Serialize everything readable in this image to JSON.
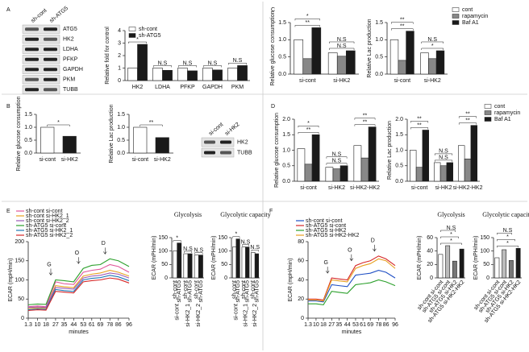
{
  "panels": [
    "A",
    "B",
    "C",
    "D",
    "E",
    "F"
  ],
  "blots": [
    {
      "lanes": [
        "sh-cont",
        "sh-ATG5"
      ],
      "rows": [
        "ATG5",
        "HK2",
        "LDHA",
        "PFKP",
        "GAPDH",
        "PKM",
        "TUBB"
      ]
    },
    {
      "lanes": [
        "si-cont",
        "si-HK2"
      ],
      "rows": [
        "HK2",
        "TUBB"
      ]
    }
  ],
  "chart_data": [
    {
      "type": "bar",
      "ylabel": "Relative fold for control",
      "categories": [
        "HK2",
        "LDHA",
        "PFKP",
        "GAPDH",
        "PKM"
      ],
      "series": [
        {
          "name": "sh-cont",
          "color": "#ffffff",
          "values": [
            1,
            1,
            1,
            1,
            1
          ]
        },
        {
          "name": "sh-ATG5",
          "color": "#1a1a1a",
          "values": [
            2.9,
            0.82,
            0.78,
            0.85,
            1.2
          ]
        }
      ],
      "ylim": [
        0,
        4
      ],
      "yticks": [
        0,
        1,
        2,
        3,
        4
      ],
      "annotations": [
        [
          "*"
        ],
        [
          "N.S"
        ],
        [
          "N.S"
        ],
        [
          "N.S"
        ],
        [
          "N.S"
        ]
      ],
      "legend": "top-left"
    },
    {
      "type": "bar",
      "ylabel": "Relative glucose consumption",
      "categories": [
        "si-cont",
        "si-HK2"
      ],
      "values": [
        1.0,
        0.65
      ],
      "colors": [
        "#ffffff",
        "#1a1a1a"
      ],
      "ylim": [
        0,
        1.5
      ],
      "yticks": [
        {
          "value": 0,
          "label": "0.0"
        },
        {
          "value": 0.5,
          "label": "0.5"
        },
        {
          "value": 1,
          "label": "1.0"
        },
        {
          "value": 1.5,
          "label": "1.5"
        }
      ],
      "overall_annotations": [
        "*"
      ]
    },
    {
      "type": "bar",
      "ylabel": "Relative Lac production",
      "categories": [
        "si-cont",
        "si-HK2"
      ],
      "values": [
        1.0,
        0.6
      ],
      "colors": [
        "#ffffff",
        "#1a1a1a"
      ],
      "ylim": [
        0,
        1.5
      ],
      "yticks": [
        {
          "value": 0,
          "label": "0.0"
        },
        {
          "value": 0.5,
          "label": "0.5"
        },
        {
          "value": 1,
          "label": "1.0"
        },
        {
          "value": 1.5,
          "label": "1.5"
        }
      ],
      "overall_annotations": [
        "**"
      ]
    },
    {
      "type": "bar",
      "ylabel": "Relative glucose consumption",
      "categories": [
        "si-cont",
        "si-HK2"
      ],
      "series": [
        {
          "color": "#ffffff",
          "values": [
            1.0,
            0.62
          ]
        },
        {
          "color": "#888888",
          "values": [
            0.45,
            0.52
          ]
        },
        {
          "color": "#1a1a1a",
          "values": [
            1.35,
            0.68
          ]
        }
      ],
      "ylim": [
        0,
        1.5
      ],
      "yticks": [
        {
          "value": 0,
          "label": "0.0"
        },
        {
          "value": 0.5,
          "label": "0.5"
        },
        {
          "value": 1,
          "label": "1.0"
        },
        {
          "value": 1.5,
          "label": "1.5"
        }
      ],
      "annotations": [
        [
          "**",
          "*"
        ],
        [
          "N.S",
          "N.S"
        ]
      ]
    },
    {
      "type": "bar",
      "ylabel": "Relative Lac production",
      "categories": [
        "si-cont",
        "si-HK2"
      ],
      "series": [
        {
          "name": "cont",
          "color": "#ffffff",
          "values": [
            1.0,
            0.62
          ]
        },
        {
          "name": "rapamycin",
          "color": "#888888",
          "values": [
            0.4,
            0.45
          ]
        },
        {
          "name": "Baf A1",
          "color": "#1a1a1a",
          "values": [
            1.25,
            0.68
          ]
        }
      ],
      "ylim": [
        0,
        1.5
      ],
      "yticks": [
        {
          "value": 0,
          "label": "0.0"
        },
        {
          "value": 0.5,
          "label": "0.5"
        },
        {
          "value": 1,
          "label": "1.0"
        },
        {
          "value": 1.5,
          "label": "1.5"
        }
      ],
      "annotations": [
        [
          "**",
          "**"
        ],
        [
          "*",
          "N.S"
        ]
      ],
      "legend": "outside-right"
    },
    {
      "type": "bar",
      "ylabel": "Relative glucose consumption",
      "categories": [
        "si-cont",
        "si-HK2",
        "si-HK2-HK2"
      ],
      "series": [
        {
          "color": "#ffffff",
          "values": [
            1.05,
            0.45,
            1.15
          ]
        },
        {
          "color": "#888888",
          "values": [
            0.55,
            0.4,
            0.75
          ]
        },
        {
          "color": "#1a1a1a",
          "values": [
            1.5,
            0.5,
            1.75
          ]
        }
      ],
      "ylim": [
        0,
        2
      ],
      "yticks": [
        {
          "value": 0,
          "label": "0.0"
        },
        {
          "value": 0.5,
          "label": "0.5"
        },
        {
          "value": 1,
          "label": "1.0"
        },
        {
          "value": 1.5,
          "label": "1.5"
        },
        {
          "value": 2,
          "label": "2.0"
        }
      ],
      "annotations": [
        [
          "**",
          "*"
        ],
        [
          "N.S",
          "N.S"
        ],
        [
          "**",
          "**"
        ]
      ]
    },
    {
      "type": "bar",
      "ylabel": "Relative Lac production",
      "categories": [
        "si-cont",
        "si-HK2",
        "si-HK2-HK2"
      ],
      "series": [
        {
          "name": "cont",
          "color": "#ffffff",
          "values": [
            1.0,
            0.6,
            1.15
          ]
        },
        {
          "name": "rapamycin",
          "color": "#888888",
          "values": [
            0.45,
            0.5,
            0.72
          ]
        },
        {
          "name": "Baf A1",
          "color": "#1a1a1a",
          "values": [
            1.65,
            0.6,
            1.8
          ]
        }
      ],
      "ylim": [
        0,
        2
      ],
      "yticks": [
        {
          "value": 0,
          "label": "0.0"
        },
        {
          "value": 0.5,
          "label": "0.5"
        },
        {
          "value": 1,
          "label": "1.0"
        },
        {
          "value": 1.5,
          "label": "1.5"
        },
        {
          "value": 2,
          "label": "2.0"
        }
      ],
      "annotations": [
        [
          "**",
          "**"
        ],
        [
          "N.S",
          "N.S"
        ],
        [
          "**",
          "**"
        ]
      ],
      "legend": "outside-right"
    },
    {
      "type": "line",
      "ylabel": "ECAR (mpH/min)",
      "xlabel": "minutes",
      "x": [
        1.3,
        10,
        18,
        27,
        35,
        44,
        53,
        61,
        69,
        78,
        86,
        96
      ],
      "xlim": [
        1.3,
        96
      ],
      "xticks": [
        1.3,
        10,
        18,
        27,
        35,
        44,
        53,
        61,
        69,
        78,
        86,
        96
      ],
      "ylim": [
        0,
        200
      ],
      "yticks": [
        0,
        50,
        100,
        150,
        200
      ],
      "injections": [
        "G",
        "O",
        "D"
      ],
      "legend": "top-left",
      "series": [
        {
          "name": "sh-cont si-cont",
          "color": "#e0559a",
          "values": [
            30,
            32,
            30,
            95,
            90,
            88,
            120,
            125,
            128,
            140,
            135,
            120
          ]
        },
        {
          "name": "sh-cont si-HK2_1",
          "color": "#e8a020",
          "values": [
            25,
            27,
            26,
            85,
            82,
            80,
            110,
            115,
            118,
            125,
            120,
            110
          ]
        },
        {
          "name": "sh-cont si-HK2_2",
          "color": "#9b59b6",
          "values": [
            28,
            29,
            28,
            80,
            78,
            76,
            105,
            110,
            112,
            118,
            115,
            105
          ]
        },
        {
          "name": "sh-ATG5 si-cont",
          "color": "#2ca02c",
          "values": [
            35,
            37,
            36,
            100,
            98,
            95,
            130,
            138,
            140,
            155,
            150,
            135
          ]
        },
        {
          "name": "sh-ATG5 si-HK2_1",
          "color": "#1f77b4",
          "values": [
            22,
            24,
            23,
            75,
            72,
            70,
            100,
            104,
            106,
            112,
            108,
            98
          ]
        },
        {
          "name": "sh-ATG5 si-HK2_2",
          "color": "#d62728",
          "values": [
            20,
            22,
            21,
            70,
            68,
            66,
            95,
            98,
            100,
            105,
            102,
            92
          ]
        }
      ]
    },
    {
      "type": "bar",
      "title": "Glycolysis",
      "ylabel": "ECAR (mPH/min)",
      "categories": [
        "si-cont",
        "si-HK2_1",
        "si-HK2_2"
      ],
      "bar_labels": [
        "sh-cont",
        "sh-ATG5"
      ],
      "series": [
        {
          "color": "#ffffff",
          "values": [
            100,
            90,
            85
          ]
        },
        {
          "color": "#1a1a1a",
          "values": [
            130,
            90,
            85
          ]
        }
      ],
      "ylim": [
        0,
        150
      ],
      "yticks": [
        0,
        50,
        100,
        150
      ],
      "annotations": [
        [
          "*"
        ],
        [
          "N.S"
        ],
        [
          "N.S"
        ]
      ]
    },
    {
      "type": "bar",
      "title": "Glycolytic capacity",
      "ylabel": "ECAR (mPH/min)",
      "categories": [
        "si-cont",
        "si-HK2_1",
        "si-HK2_2"
      ],
      "bar_labels": [
        "sh-cont",
        "sh-ATG5"
      ],
      "series": [
        {
          "color": "#ffffff",
          "values": [
            115,
            115,
            95
          ]
        },
        {
          "color": "#1a1a1a",
          "values": [
            145,
            115,
            90
          ]
        }
      ],
      "ylim": [
        0,
        150
      ],
      "yticks": [
        0,
        50,
        100,
        150
      ],
      "annotations": [
        [
          "*"
        ],
        [
          "N.S"
        ],
        [
          "N.S"
        ]
      ]
    },
    {
      "type": "line",
      "ylabel": "ECAR (mpH/min)",
      "xlabel": "minutes",
      "x": [
        1.3,
        10,
        18,
        27,
        35,
        44,
        53,
        61,
        69,
        78,
        86,
        96
      ],
      "xlim": [
        1.3,
        96
      ],
      "xticks": [
        1.3,
        10,
        18,
        27,
        35,
        44,
        53,
        61,
        69,
        78,
        86,
        96
      ],
      "ylim": [
        0,
        80
      ],
      "yticks": [
        0,
        20,
        40,
        60,
        80
      ],
      "injections": [
        "G",
        "O",
        "D"
      ],
      "legend": "top-left",
      "series": [
        {
          "name": "sh-cont si-cont",
          "color": "#1f4fc4",
          "values": [
            18,
            18,
            17,
            35,
            34,
            33,
            45,
            46,
            47,
            50,
            48,
            42
          ]
        },
        {
          "name": "sh-ATG5 si-cont",
          "color": "#d62728",
          "values": [
            20,
            20,
            19,
            42,
            41,
            40,
            55,
            58,
            60,
            65,
            62,
            55
          ]
        },
        {
          "name": "sh-ATG5 si-HK2",
          "color": "#2ca02c",
          "values": [
            15,
            15,
            14,
            28,
            27,
            26,
            35,
            36,
            37,
            40,
            38,
            34
          ]
        },
        {
          "name": "sh-ATG5 si-HK2-HK2",
          "color": "#e8a020",
          "values": [
            19,
            19,
            18,
            40,
            39,
            38,
            52,
            55,
            57,
            62,
            60,
            52
          ]
        }
      ]
    },
    {
      "type": "bar",
      "title": "Glycolysis",
      "ylabel": "ECAR (mPH/min)",
      "categories": [
        "sh-cont si-cont",
        "sh-ATG5 si-cont",
        "sh-ATG5 si-HK2",
        "sh-ATG5 si-HK2-HK2"
      ],
      "values": [
        35,
        48,
        25,
        43
      ],
      "colors": [
        "#ffffff",
        "#bbbbbb",
        "#777777",
        "#1a1a1a"
      ],
      "ylim": [
        0,
        60
      ],
      "yticks": [
        0,
        20,
        40,
        60
      ],
      "overall_annotations": [
        "*",
        "*",
        "N.S"
      ],
      "rotate_labels": true
    },
    {
      "type": "bar",
      "title": "Glycolytic capacity",
      "ylabel": "ECAR (mPH/min)",
      "categories": [
        "sh-cont si-cont",
        "sh-ATG5 si-cont",
        "sh-ATG5 si-HK2",
        "sh-ATG5 si-HK2-HK2"
      ],
      "values": [
        75,
        105,
        65,
        110
      ],
      "colors": [
        "#ffffff",
        "#bbbbbb",
        "#777777",
        "#1a1a1a"
      ],
      "ylim": [
        0,
        150
      ],
      "yticks": [
        0,
        50,
        100,
        150
      ],
      "overall_annotations": [
        "*",
        "*",
        "N.S"
      ],
      "rotate_labels": true
    }
  ]
}
